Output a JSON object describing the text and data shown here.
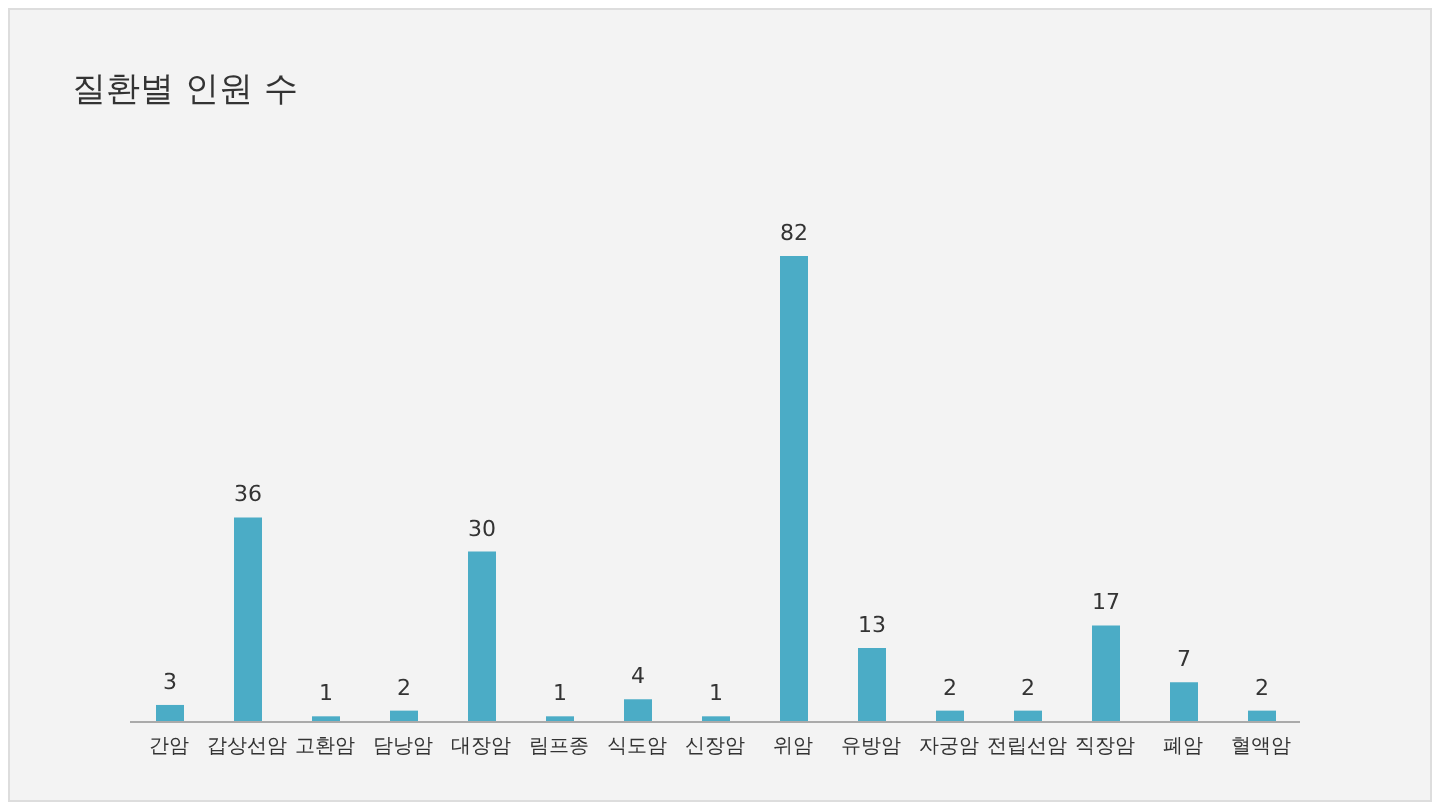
{
  "chart_data": {
    "type": "bar",
    "title": "질환별 인원 수",
    "categories": [
      "간암",
      "갑상선암",
      "고환암",
      "담낭암",
      "대장암",
      "림프종",
      "식도암",
      "신장암",
      "위암",
      "유방암",
      "자궁암",
      "전립선암",
      "직장암",
      "폐암",
      "혈액암"
    ],
    "values": [
      3,
      36,
      1,
      2,
      30,
      1,
      4,
      1,
      82,
      13,
      2,
      2,
      17,
      7,
      2
    ],
    "color": "#4bacc6",
    "data_labels": true,
    "grid": false,
    "legend": false
  }
}
